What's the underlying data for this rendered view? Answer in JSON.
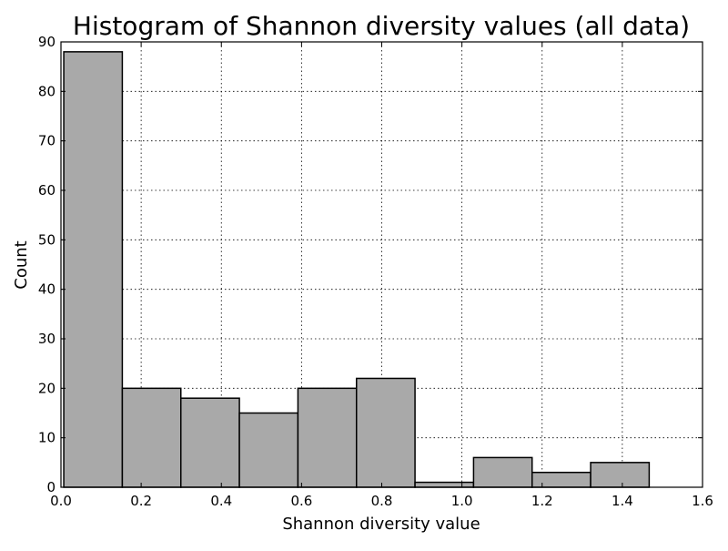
{
  "chart_data": {
    "type": "bar",
    "title": "Histogram of Shannon diversity values (all data)",
    "xlabel": "Shannon diversity value",
    "ylabel": "Count",
    "xlim": [
      0.0,
      1.6
    ],
    "ylim": [
      0,
      90
    ],
    "x_ticks": [
      "0.0",
      "0.2",
      "0.4",
      "0.6",
      "0.8",
      "1.0",
      "1.2",
      "1.4",
      "1.6"
    ],
    "y_ticks": [
      "0",
      "10",
      "20",
      "30",
      "40",
      "50",
      "60",
      "70",
      "80",
      "90"
    ],
    "grid": true,
    "bins": [
      {
        "start": 0.007,
        "end": 0.153,
        "count": 88
      },
      {
        "start": 0.153,
        "end": 0.299,
        "count": 20
      },
      {
        "start": 0.299,
        "end": 0.445,
        "count": 18
      },
      {
        "start": 0.445,
        "end": 0.591,
        "count": 15
      },
      {
        "start": 0.591,
        "end": 0.737,
        "count": 20
      },
      {
        "start": 0.737,
        "end": 0.883,
        "count": 22
      },
      {
        "start": 0.883,
        "end": 1.029,
        "count": 1
      },
      {
        "start": 1.029,
        "end": 1.175,
        "count": 6
      },
      {
        "start": 1.175,
        "end": 1.321,
        "count": 3
      },
      {
        "start": 1.321,
        "end": 1.467,
        "count": 5
      }
    ],
    "colors": {
      "bar_fill": "#a9a9a9",
      "bar_edge": "#000000",
      "grid": "#000000"
    }
  }
}
